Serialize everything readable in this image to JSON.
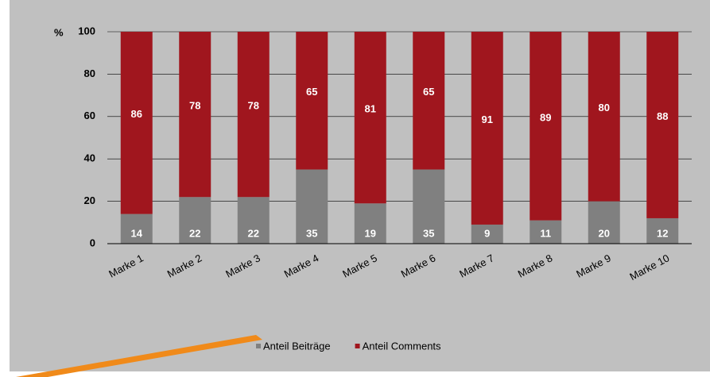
{
  "chart_data": {
    "type": "stacked_bar",
    "ylabel": "%",
    "categories": [
      "Marke 1",
      "Marke 2",
      "Marke 3",
      "Marke 4",
      "Marke 5",
      "Marke 6",
      "Marke 7",
      "Marke 8",
      "Marke 9",
      "Marke 10"
    ],
    "series": [
      {
        "name": "Anteil Beiträge",
        "color": "#808080",
        "values": [
          14,
          22,
          22,
          35,
          19,
          35,
          9,
          11,
          20,
          12
        ]
      },
      {
        "name": "Anteil Comments",
        "color": "#a0161e",
        "values": [
          86,
          78,
          78,
          65,
          81,
          65,
          91,
          89,
          80,
          88
        ]
      }
    ],
    "ylim": [
      0,
      100
    ],
    "yticks": [
      0,
      20,
      40,
      60,
      80,
      100
    ],
    "grid": true,
    "legend": "bottom"
  }
}
